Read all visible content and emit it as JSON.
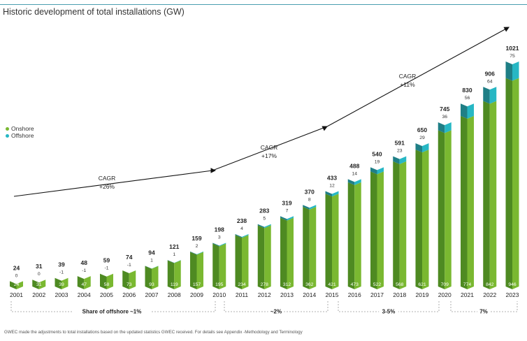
{
  "title": "Historic development of total installations (GW)",
  "legend": [
    {
      "label": "Onshore",
      "color": "#7ab831"
    },
    {
      "label": "Offshore",
      "color": "#27b7c4"
    }
  ],
  "chart_data": {
    "type": "bar",
    "stacked": true,
    "categories": [
      "2001",
      "2002",
      "2003",
      "2004",
      "2005",
      "2006",
      "2007",
      "2008",
      "2009",
      "2010",
      "2011",
      "2012",
      "2013",
      "2014",
      "2015",
      "2016",
      "2017",
      "2018",
      "2019",
      "2020",
      "2021",
      "2022",
      "2023"
    ],
    "totals": [
      24,
      31,
      39,
      48,
      59,
      74,
      94,
      121,
      159,
      198,
      238,
      283,
      319,
      370,
      433,
      488,
      540,
      591,
      650,
      745,
      830,
      906,
      1021
    ],
    "offshore_labels": [
      "0",
      "0",
      "-1",
      "-1",
      "-1",
      "-1",
      "1",
      "1",
      "2",
      "3",
      "4",
      "5",
      "7",
      "8",
      "12",
      "14",
      "19",
      "23",
      "29",
      "36",
      "56",
      "64",
      "75"
    ],
    "series": [
      {
        "name": "Onshore",
        "color": "#7ab831",
        "values": [
          24,
          31,
          39,
          47,
          58,
          73,
          93,
          119,
          157,
          195,
          234,
          278,
          312,
          362,
          421,
          473,
          522,
          568,
          621,
          709,
          774,
          842,
          946
        ]
      },
      {
        "name": "Offshore",
        "color": "#27b7c4",
        "values": [
          0,
          0,
          0,
          0,
          0,
          0,
          1,
          1,
          2,
          3,
          4,
          5,
          7,
          8,
          12,
          14,
          19,
          23,
          29,
          36,
          56,
          64,
          75
        ]
      }
    ],
    "ylim": [
      0,
      1021
    ],
    "legend_position": "left",
    "cagr": [
      {
        "label1": "CAGR",
        "label2": "+26%"
      },
      {
        "label1": "CAGR",
        "label2": "+17%"
      },
      {
        "label1": "CAGR",
        "label2": "+11%"
      }
    ],
    "share_of_offshore": [
      {
        "label": "Share of offshore ~1%"
      },
      {
        "label": "~2%"
      },
      {
        "label": "3-5%"
      },
      {
        "label": "7%"
      }
    ]
  },
  "footnote": "GWEC made the adjustments to total installations based on the updated statistics GWEC received. For details see Appendix -Methodology and Terminology"
}
